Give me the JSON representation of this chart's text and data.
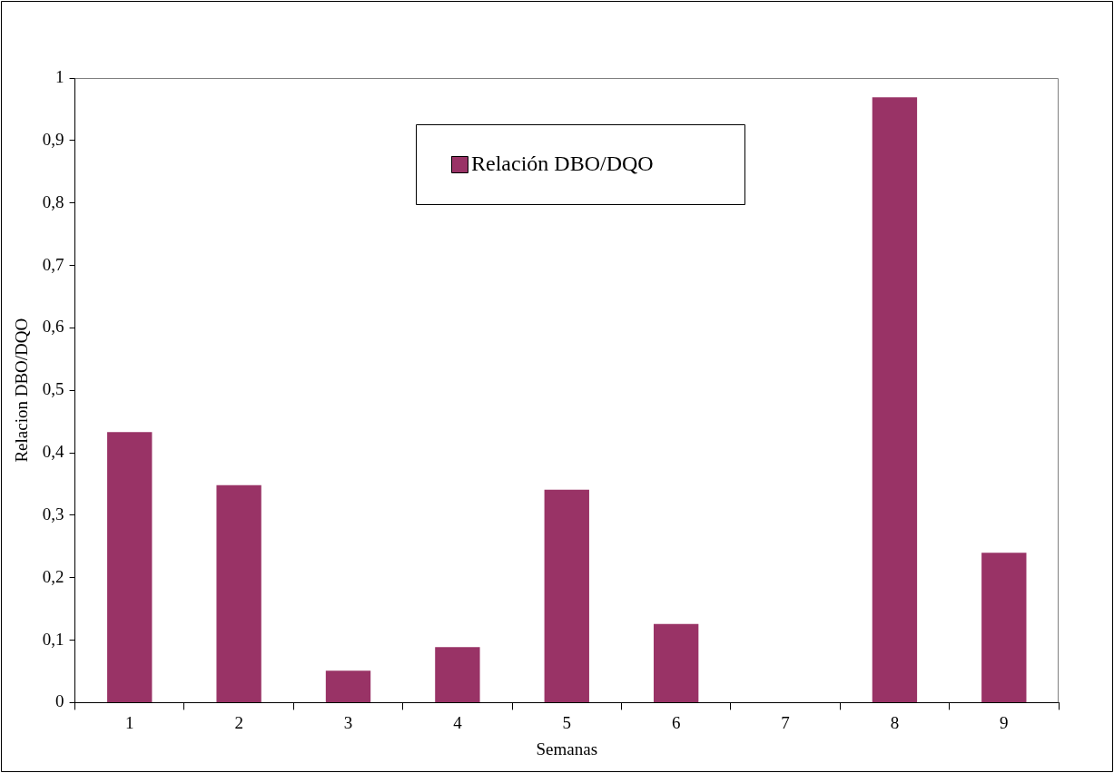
{
  "chart_data": {
    "type": "bar",
    "categories": [
      "1",
      "2",
      "3",
      "4",
      "5",
      "6",
      "7",
      "8",
      "9"
    ],
    "series": [
      {
        "name": "Relación DBO/DQO",
        "color": "#993366",
        "values": [
          0.433,
          0.348,
          0.051,
          0.089,
          0.341,
          0.126,
          0,
          0.969,
          0.24
        ]
      }
    ],
    "xlabel": "Semanas",
    "ylabel": "Relacion DBO/DQO",
    "ylim": [
      0,
      1
    ],
    "yticks": [
      0,
      {
        "value": 0.1,
        "label": "0,1"
      },
      {
        "value": 0.2,
        "label": "0,2"
      },
      {
        "value": 0.3,
        "label": "0,3"
      },
      {
        "value": 0.4,
        "label": "0,4"
      },
      {
        "value": 0.5,
        "label": "0,5"
      },
      {
        "value": 0.6,
        "label": "0,6"
      },
      {
        "value": 0.7,
        "label": "0,7"
      },
      {
        "value": 0.8,
        "label": "0,8"
      },
      {
        "value": 0.9,
        "label": "0,9"
      },
      1
    ],
    "grid": false,
    "legend": "top"
  }
}
